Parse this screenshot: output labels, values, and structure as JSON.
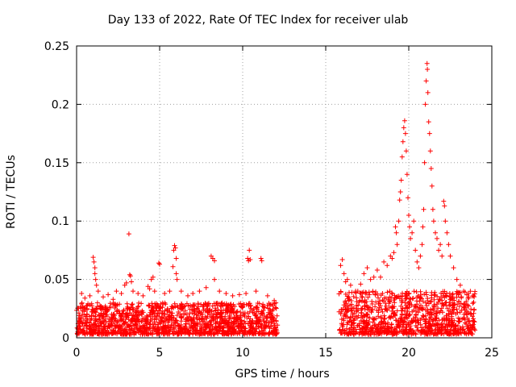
{
  "chart_data": {
    "type": "scatter",
    "title": "Day 133 of 2022, Rate Of TEC Index for receiver ulab",
    "xlabel": "GPS time / hours",
    "ylabel": "ROTI / TECUs",
    "xlim": [
      0,
      25
    ],
    "ylim": [
      0,
      0.25
    ],
    "xticks": [
      "0",
      "5",
      "10",
      "15",
      "20",
      "25"
    ],
    "yticks": [
      "0",
      "0.05",
      "0.1",
      "0.15",
      "0.2",
      "0.25"
    ],
    "grid": true,
    "marker": "+",
    "color": "#ff0000",
    "baseline_band": [
      {
        "x_from": 0.0,
        "x_to": 12.1,
        "y_low": 0.003,
        "y_high": 0.03
      },
      {
        "x_from": 15.8,
        "x_to": 24.0,
        "y_low": 0.003,
        "y_high": 0.04
      }
    ],
    "points": [
      [
        0.3,
        0.038
      ],
      [
        0.5,
        0.034
      ],
      [
        0.8,
        0.036
      ],
      [
        1.0,
        0.069
      ],
      [
        1.05,
        0.065
      ],
      [
        1.1,
        0.06
      ],
      [
        1.1,
        0.055
      ],
      [
        1.15,
        0.05
      ],
      [
        1.2,
        0.045
      ],
      [
        1.3,
        0.04
      ],
      [
        1.6,
        0.035
      ],
      [
        1.9,
        0.037
      ],
      [
        2.2,
        0.033
      ],
      [
        2.4,
        0.04
      ],
      [
        2.7,
        0.038
      ],
      [
        2.9,
        0.045
      ],
      [
        3.0,
        0.047
      ],
      [
        3.15,
        0.089
      ],
      [
        3.2,
        0.054
      ],
      [
        3.25,
        0.053
      ],
      [
        3.3,
        0.048
      ],
      [
        3.4,
        0.04
      ],
      [
        3.7,
        0.038
      ],
      [
        4.0,
        0.036
      ],
      [
        4.3,
        0.044
      ],
      [
        4.4,
        0.042
      ],
      [
        4.5,
        0.05
      ],
      [
        4.6,
        0.052
      ],
      [
        4.7,
        0.04
      ],
      [
        4.95,
        0.064
      ],
      [
        5.0,
        0.063
      ],
      [
        5.3,
        0.038
      ],
      [
        5.6,
        0.04
      ],
      [
        5.8,
        0.061
      ],
      [
        5.85,
        0.075
      ],
      [
        5.9,
        0.079
      ],
      [
        5.95,
        0.077
      ],
      [
        6.0,
        0.068
      ],
      [
        6.0,
        0.055
      ],
      [
        6.05,
        0.05
      ],
      [
        6.3,
        0.04
      ],
      [
        6.7,
        0.036
      ],
      [
        7.0,
        0.038
      ],
      [
        7.4,
        0.04
      ],
      [
        7.8,
        0.043
      ],
      [
        8.1,
        0.07
      ],
      [
        8.2,
        0.068
      ],
      [
        8.3,
        0.066
      ],
      [
        8.3,
        0.05
      ],
      [
        8.6,
        0.04
      ],
      [
        9.0,
        0.038
      ],
      [
        9.4,
        0.036
      ],
      [
        9.8,
        0.037
      ],
      [
        10.2,
        0.038
      ],
      [
        10.3,
        0.068
      ],
      [
        10.35,
        0.066
      ],
      [
        10.4,
        0.075
      ],
      [
        10.45,
        0.067
      ],
      [
        10.8,
        0.04
      ],
      [
        11.1,
        0.068
      ],
      [
        11.15,
        0.066
      ],
      [
        11.5,
        0.036
      ],
      [
        11.9,
        0.032
      ],
      [
        12.0,
        0.03
      ],
      [
        15.9,
        0.062
      ],
      [
        16.0,
        0.067
      ],
      [
        16.1,
        0.055
      ],
      [
        16.2,
        0.048
      ],
      [
        16.3,
        0.05
      ],
      [
        16.5,
        0.045
      ],
      [
        16.8,
        0.04
      ],
      [
        17.1,
        0.046
      ],
      [
        17.3,
        0.055
      ],
      [
        17.5,
        0.06
      ],
      [
        17.7,
        0.05
      ],
      [
        17.9,
        0.052
      ],
      [
        18.1,
        0.058
      ],
      [
        18.3,
        0.052
      ],
      [
        18.5,
        0.065
      ],
      [
        18.7,
        0.062
      ],
      [
        18.9,
        0.07
      ],
      [
        19.0,
        0.068
      ],
      [
        19.1,
        0.073
      ],
      [
        19.2,
        0.095
      ],
      [
        19.25,
        0.09
      ],
      [
        19.3,
        0.08
      ],
      [
        19.4,
        0.1
      ],
      [
        19.45,
        0.118
      ],
      [
        19.5,
        0.125
      ],
      [
        19.55,
        0.135
      ],
      [
        19.6,
        0.155
      ],
      [
        19.65,
        0.168
      ],
      [
        19.7,
        0.18
      ],
      [
        19.75,
        0.186
      ],
      [
        19.8,
        0.175
      ],
      [
        19.85,
        0.16
      ],
      [
        19.9,
        0.14
      ],
      [
        19.95,
        0.12
      ],
      [
        20.0,
        0.105
      ],
      [
        20.05,
        0.095
      ],
      [
        20.1,
        0.085
      ],
      [
        20.2,
        0.09
      ],
      [
        20.3,
        0.1
      ],
      [
        20.4,
        0.075
      ],
      [
        20.5,
        0.065
      ],
      [
        20.6,
        0.06
      ],
      [
        20.7,
        0.07
      ],
      [
        20.8,
        0.08
      ],
      [
        20.85,
        0.095
      ],
      [
        20.9,
        0.11
      ],
      [
        20.95,
        0.15
      ],
      [
        21.0,
        0.2
      ],
      [
        21.05,
        0.22
      ],
      [
        21.1,
        0.235
      ],
      [
        21.12,
        0.23
      ],
      [
        21.15,
        0.21
      ],
      [
        21.2,
        0.185
      ],
      [
        21.25,
        0.175
      ],
      [
        21.3,
        0.16
      ],
      [
        21.35,
        0.145
      ],
      [
        21.4,
        0.13
      ],
      [
        21.45,
        0.11
      ],
      [
        21.5,
        0.1
      ],
      [
        21.6,
        0.09
      ],
      [
        21.7,
        0.085
      ],
      [
        21.8,
        0.075
      ],
      [
        21.9,
        0.08
      ],
      [
        22.0,
        0.07
      ],
      [
        22.1,
        0.117
      ],
      [
        22.15,
        0.113
      ],
      [
        22.2,
        0.1
      ],
      [
        22.3,
        0.09
      ],
      [
        22.4,
        0.08
      ],
      [
        22.5,
        0.07
      ],
      [
        22.7,
        0.06
      ],
      [
        22.9,
        0.05
      ],
      [
        23.1,
        0.045
      ],
      [
        23.3,
        0.04
      ],
      [
        23.6,
        0.038
      ],
      [
        23.9,
        0.036
      ]
    ]
  }
}
